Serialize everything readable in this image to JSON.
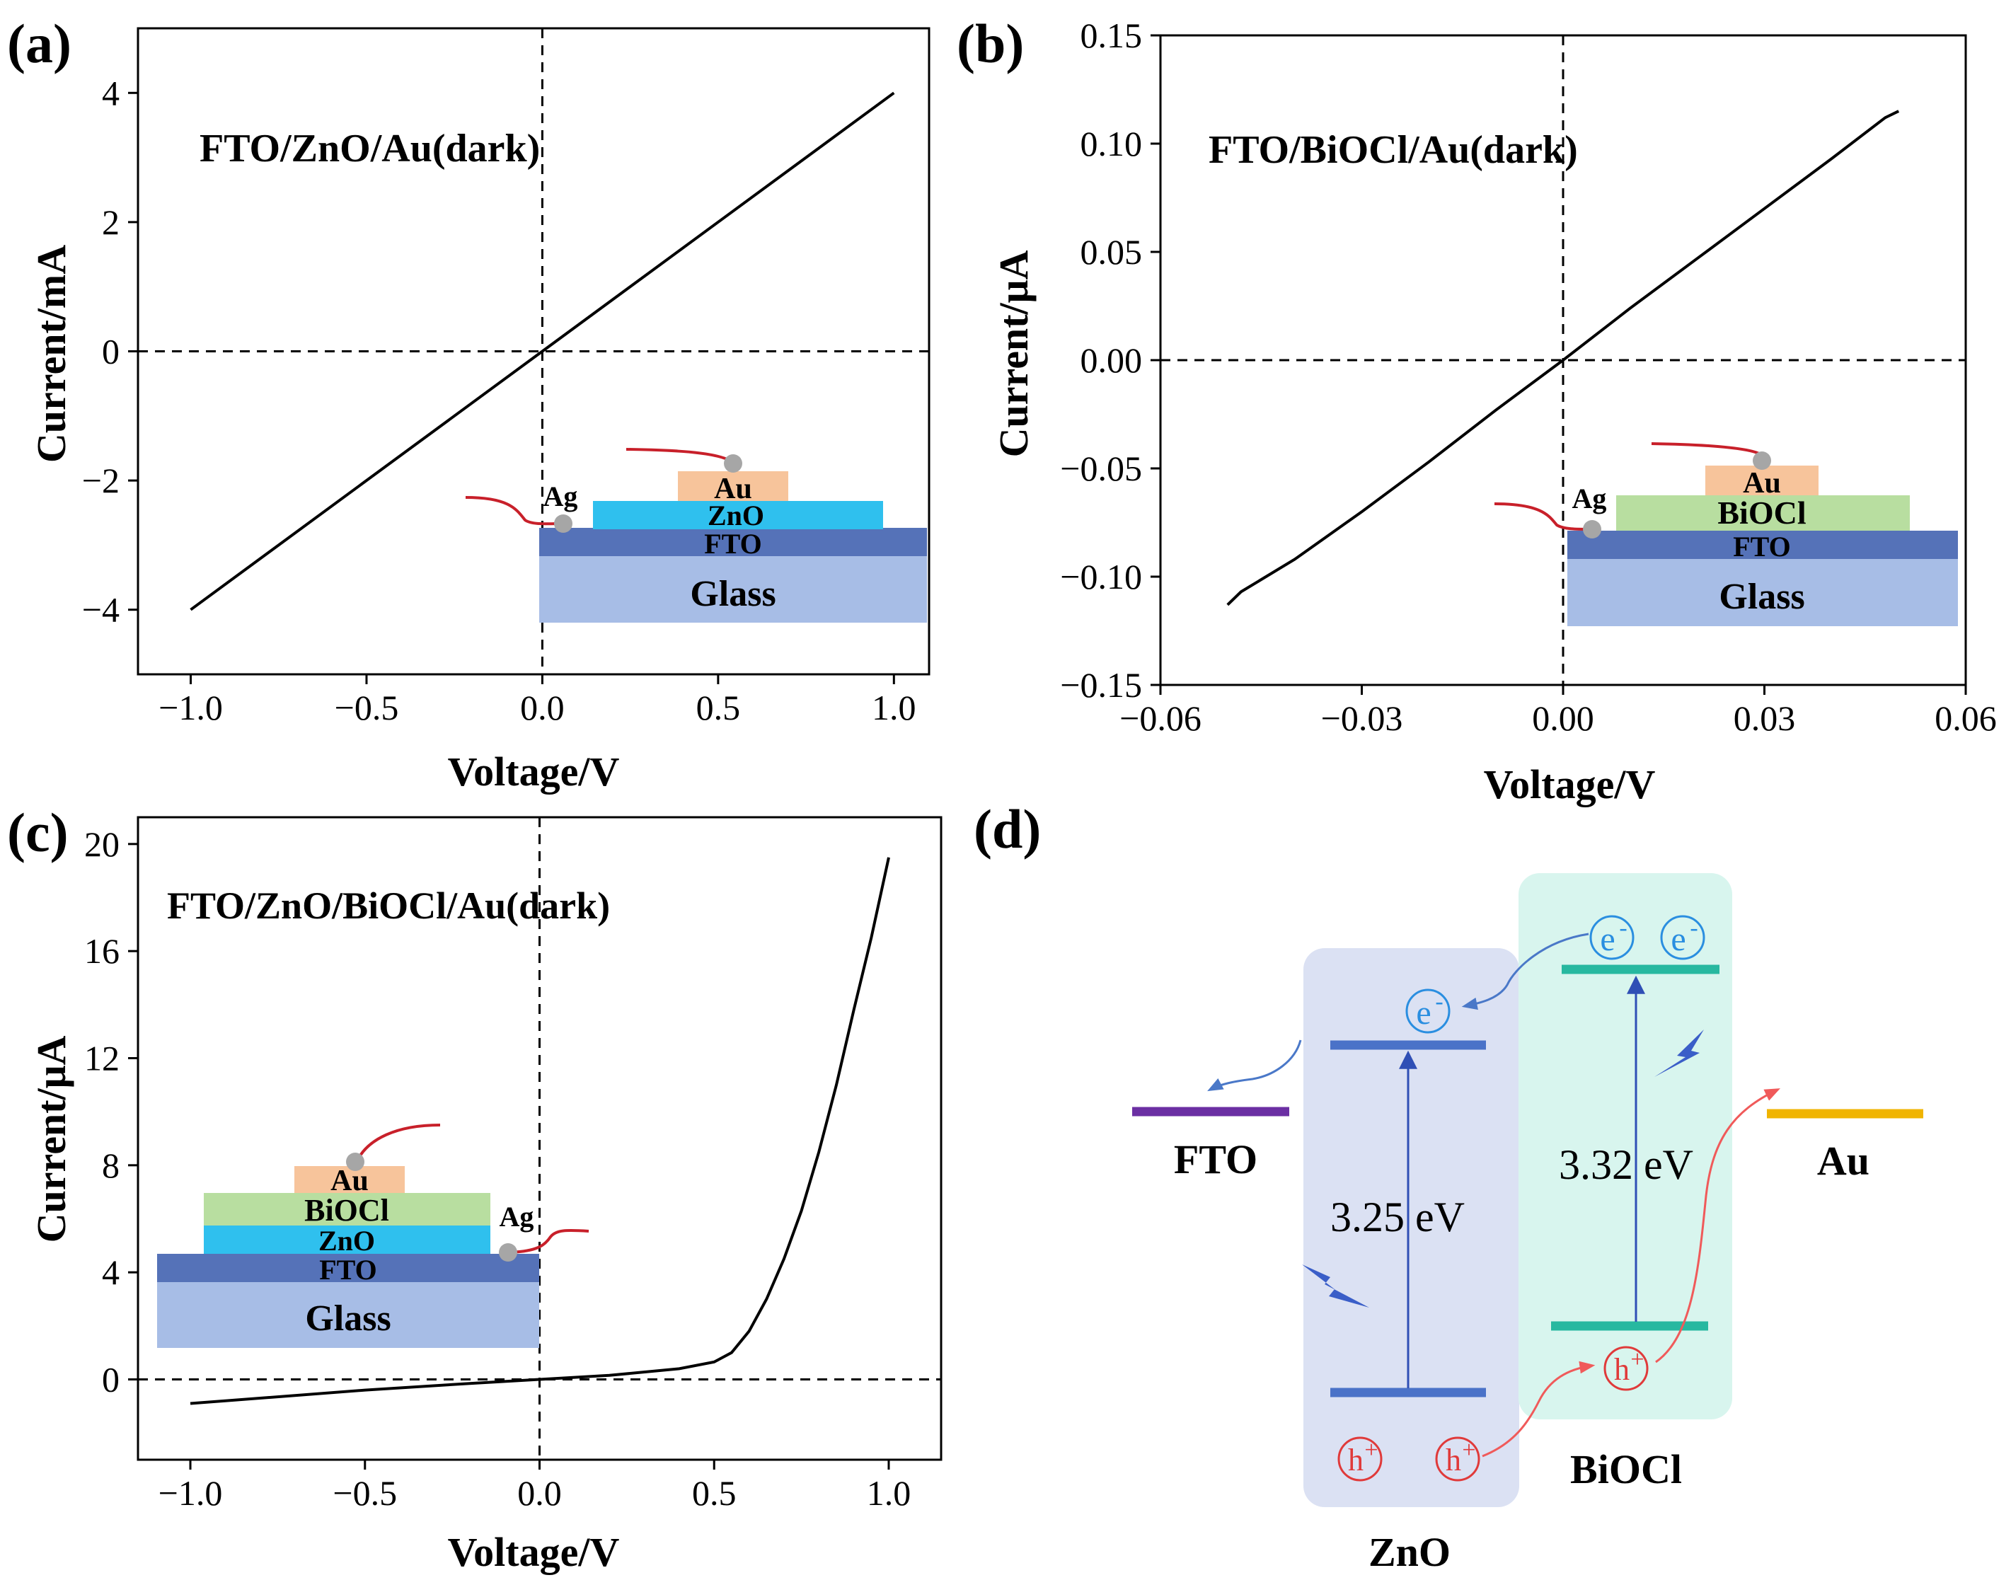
{
  "colors": {
    "axis": "#000000",
    "glass": "#a7bde6",
    "fto": "#5572b8",
    "zno": "#2fc0ee",
    "bioc": "#b8dea0",
    "au": "#f7c49b",
    "wire": "#c8202a",
    "dot": "#a6a6a6",
    "zno_box": "#dbe1f3",
    "bioc_box": "#d8f5ee",
    "zno_level": "#4a72c8",
    "bioc_level": "#27b8a0",
    "fto_level": "#6b2fa3",
    "au_level": "#f0b400",
    "electron": "#2a8ee0",
    "hole": "#e03a3a",
    "arrow_blue": "#4a78c8",
    "arrow_red": "#f05a5a",
    "bolt": "#3a5ec8"
  },
  "chart_data": [
    {
      "panel": "(a)",
      "type": "line",
      "title": "FTO/ZnO/Au(dark)",
      "xlabel": "Voltage/V",
      "ylabel": "Current/mA",
      "xlim": [
        -1.15,
        1.1
      ],
      "ylim": [
        -5,
        5
      ],
      "xticks": [
        -1.0,
        -0.5,
        0.0,
        0.5,
        1.0
      ],
      "xtick_labels": [
        "−1.0",
        "−0.5",
        "0.0",
        "0.5",
        "1.0"
      ],
      "yticks": [
        -4,
        -2,
        0,
        2,
        4
      ],
      "ytick_labels": [
        "−4",
        "−2",
        "0",
        "2",
        "4"
      ],
      "series": [
        {
          "name": "FTO/ZnO/Au(dark)",
          "x": [
            -1.0,
            1.0
          ],
          "y": [
            -4.0,
            4.0
          ]
        }
      ],
      "inset": {
        "wire_label": "Ag",
        "layers": [
          "Au",
          "ZnO",
          "FTO",
          "Glass"
        ]
      }
    },
    {
      "panel": "(b)",
      "type": "line",
      "title": "FTO/BiOCl/Au(dark)",
      "xlabel": "Voltage/V",
      "ylabel": "Current/μA",
      "xlim": [
        -0.06,
        0.06
      ],
      "ylim": [
        -0.15,
        0.15
      ],
      "xticks": [
        -0.06,
        -0.03,
        0.0,
        0.03,
        0.06
      ],
      "xtick_labels": [
        "−0.06",
        "−0.03",
        "0.00",
        "0.03",
        "0.06"
      ],
      "yticks": [
        -0.15,
        -0.1,
        -0.05,
        0.0,
        0.05,
        0.1,
        0.15
      ],
      "ytick_labels": [
        "−0.15",
        "−0.10",
        "−0.05",
        "0.00",
        "0.05",
        "0.10",
        "0.15"
      ],
      "series": [
        {
          "name": "FTO/BiOCl/Au(dark)",
          "x": [
            -0.05,
            -0.048,
            -0.04,
            -0.03,
            -0.02,
            -0.01,
            0.0,
            0.01,
            0.02,
            0.03,
            0.04,
            0.048,
            0.05
          ],
          "y": [
            -0.113,
            -0.107,
            -0.092,
            -0.07,
            -0.047,
            -0.023,
            0.0,
            0.024,
            0.047,
            0.07,
            0.093,
            0.112,
            0.115
          ]
        }
      ],
      "inset": {
        "wire_label": "Ag",
        "layers": [
          "Au",
          "BiOCl",
          "FTO",
          "Glass"
        ]
      }
    },
    {
      "panel": "(c)",
      "type": "line",
      "title": "FTO/ZnO/BiOCl/Au(dark)",
      "xlabel": "Voltage/V",
      "ylabel": "Current/μA",
      "xlim": [
        -1.15,
        1.15
      ],
      "ylim": [
        -3,
        21
      ],
      "xticks": [
        -1.0,
        -0.5,
        0.0,
        0.5,
        1.0
      ],
      "xtick_labels": [
        "−1.0",
        "−0.5",
        "0.0",
        "0.5",
        "1.0"
      ],
      "yticks": [
        0,
        4,
        8,
        12,
        16,
        20
      ],
      "ytick_labels": [
        "0",
        "4",
        "8",
        "12",
        "16",
        "20"
      ],
      "series": [
        {
          "name": "FTO/ZnO/BiOCl/Au(dark)",
          "x": [
            -1.0,
            -0.9,
            -0.5,
            -0.2,
            0.0,
            0.2,
            0.4,
            0.5,
            0.55,
            0.6,
            0.65,
            0.7,
            0.75,
            0.8,
            0.85,
            0.9,
            0.95,
            1.0
          ],
          "y": [
            -0.9,
            -0.8,
            -0.4,
            -0.15,
            0.0,
            0.15,
            0.4,
            0.65,
            1.0,
            1.8,
            3.0,
            4.5,
            6.3,
            8.5,
            11.0,
            13.8,
            16.5,
            19.5
          ]
        }
      ],
      "inset": {
        "wire_label": "Ag",
        "layers": [
          "Au",
          "BiOCl",
          "ZnO",
          "FTO",
          "Glass"
        ]
      }
    }
  ],
  "panel_labels": {
    "a": "(a)",
    "b": "(b)",
    "c": "(c)",
    "d": "(d)"
  },
  "diagram": {
    "fto_label": "FTO",
    "au_label": "Au",
    "zno_label": "ZnO",
    "bioc_label": "BiOCl",
    "zno_gap": "3.25 eV",
    "bioc_gap": "3.32 eV",
    "electron": "e",
    "hole": "h",
    "minus": "-",
    "plus": "+"
  }
}
